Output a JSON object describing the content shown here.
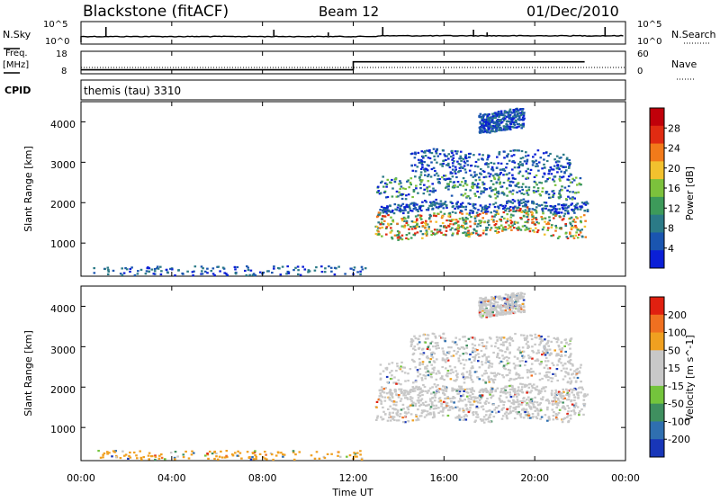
{
  "chart_data": {
    "type": "heatmap",
    "header": {
      "title": "Blackstone (fitACF)",
      "beam": "Beam 12",
      "date": "01/Dec/2010"
    },
    "status_panel": {
      "left_label": "N.Sky",
      "right_label": "N.Search",
      "left_ticks": [
        "10^5",
        "10^0"
      ],
      "right_ticks": [
        "10^5",
        "10^0"
      ]
    },
    "freq_panel": {
      "left_label_1": "Freq.",
      "left_label_2": "[MHz]",
      "right_label": "Nave",
      "left_ticks": [
        "18",
        "8"
      ],
      "right_ticks": [
        "60",
        "0"
      ],
      "freq_series": [
        {
          "t": 0.0,
          "v": 9.8
        },
        {
          "t": 12.0,
          "v": 9.8
        },
        {
          "t": 12.0,
          "v": 14.5
        },
        {
          "t": 22.2,
          "v": 14.5
        }
      ],
      "nave_level": 12
    },
    "cpid_panel": {
      "label": "CPID",
      "mode_text": "themis (tau) 3310"
    },
    "x_axis": {
      "label": "Time UT",
      "ticks": [
        "00:00",
        "04:00",
        "08:00",
        "12:00",
        "16:00",
        "20:00",
        "00:00"
      ],
      "range_hours": [
        0,
        24
      ]
    },
    "panels": [
      {
        "name": "power",
        "ylabel": "Slant Range [km]",
        "yticks": [
          "1000",
          "2000",
          "3000",
          "4000"
        ],
        "ylim": [
          180,
          4500
        ],
        "colorbar_label": "Power [dB]",
        "colorbar_ticks": [
          "28",
          "24",
          "20",
          "16",
          "12",
          "8",
          "4"
        ],
        "colors": [
          "#0a1fd6",
          "#1a55b0",
          "#2b7a87",
          "#3d9a5a",
          "#7cc13c",
          "#f2c12e",
          "#f27a1a",
          "#e02b12",
          "#c0000a"
        ]
      },
      {
        "name": "velocity",
        "ylabel": "Slant Range [km]",
        "yticks": [
          "1000",
          "2000",
          "3000",
          "4000"
        ],
        "ylim": [
          180,
          4500
        ],
        "colorbar_label": "Velocity [m s^-1]",
        "colorbar_ticks": [
          "200",
          "100",
          "50",
          "15",
          "-15",
          "-50",
          "-100",
          "-200"
        ],
        "colors": [
          "#1836b8",
          "#2f6fb0",
          "#3f8f5f",
          "#74c43c",
          "#c8c8c8",
          "#c8c8c8",
          "#f0a020",
          "#f07020",
          "#e02010"
        ]
      }
    ],
    "scatter_regions": [
      {
        "t0": 12.95,
        "t1": 22.2,
        "r0": 1200,
        "r1": 1800,
        "level": "high"
      },
      {
        "t0": 13.0,
        "t1": 22.0,
        "r0": 2150,
        "r1": 2700,
        "level": "mid"
      },
      {
        "t0": 13.1,
        "t1": 22.3,
        "r0": 1800,
        "r1": 2050,
        "level": "low"
      },
      {
        "t0": 14.5,
        "t1": 21.6,
        "r0": 2700,
        "r1": 3300,
        "level": "low"
      },
      {
        "t0": 17.5,
        "t1": 19.5,
        "r0": 3800,
        "r1": 4300,
        "level": "low"
      },
      {
        "t0": 0.5,
        "t1": 12.5,
        "r0": 180,
        "r1": 450,
        "level": "ground"
      }
    ]
  }
}
